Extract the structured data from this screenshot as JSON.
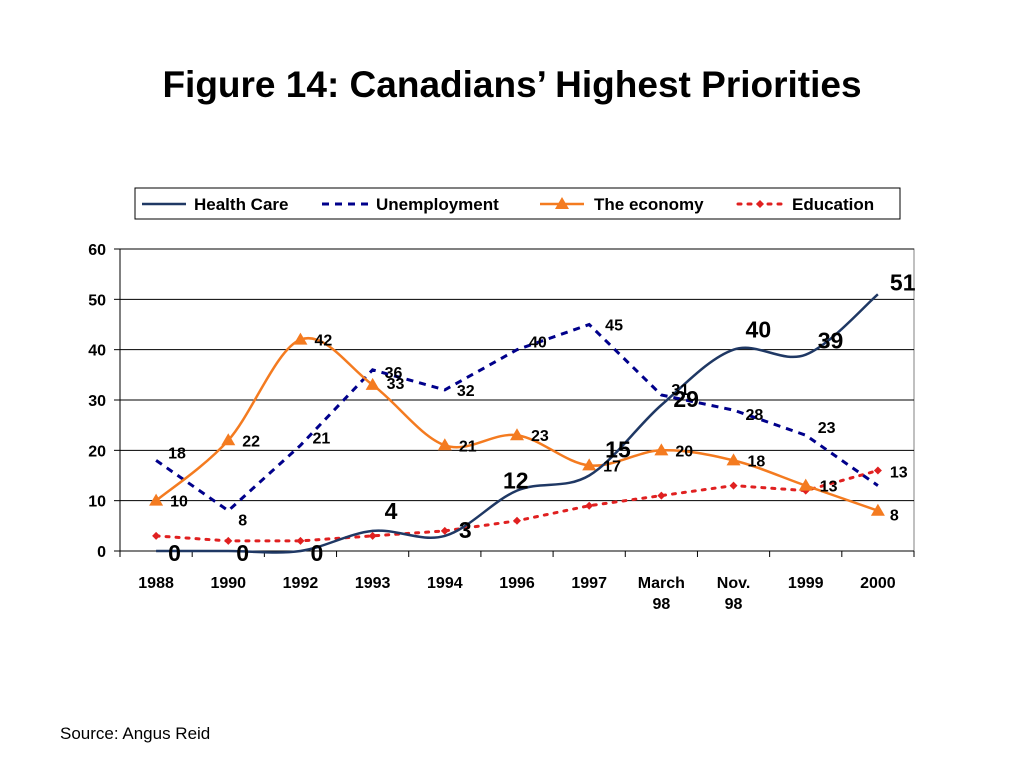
{
  "title": "Figure 14: Canadians’ Highest Priorities",
  "source": "Source: Angus Reid",
  "chart_data": {
    "type": "line",
    "categories": [
      [
        "1988"
      ],
      [
        "1990"
      ],
      [
        "1992"
      ],
      [
        "1993"
      ],
      [
        "1994"
      ],
      [
        "1996"
      ],
      [
        "1997"
      ],
      [
        "March",
        "98"
      ],
      [
        "Nov.",
        "98"
      ],
      [
        "1999"
      ],
      [
        "2000"
      ]
    ],
    "ylim": [
      0,
      60
    ],
    "yticks": [
      0,
      10,
      20,
      30,
      40,
      50,
      60
    ],
    "grid": true,
    "legend_position": "top",
    "series": [
      {
        "name": "Health Care",
        "values": [
          0,
          0,
          0,
          4,
          3,
          12,
          15,
          29,
          40,
          39,
          51
        ],
        "color": "#1f3864",
        "style": "solid-smooth"
      },
      {
        "name": "Unemployment",
        "values": [
          18,
          8,
          21,
          36,
          32,
          40,
          45,
          31,
          28,
          23,
          13
        ],
        "color": "#00008b",
        "style": "dashed"
      },
      {
        "name": "The economy",
        "values": [
          10,
          22,
          42,
          33,
          21,
          23,
          17,
          20,
          18,
          13,
          8
        ],
        "color": "#f47b20",
        "style": "solid-smooth-triangle"
      },
      {
        "name": "Education",
        "values": [
          3,
          2,
          2,
          3,
          4,
          6,
          9,
          11,
          13,
          12,
          16
        ],
        "color": "#e02020",
        "style": "dotted-diamond"
      }
    ]
  }
}
